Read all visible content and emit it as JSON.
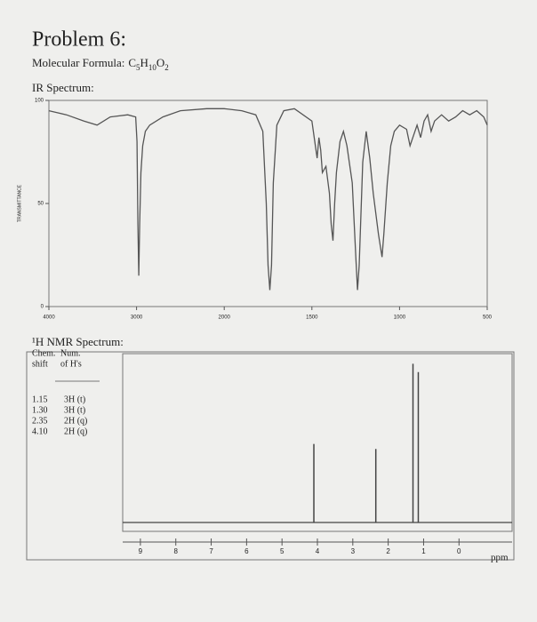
{
  "header": {
    "title": "Problem 6:",
    "formula_label": "Molecular Formula:",
    "formula_parts": [
      "C",
      "5",
      "H",
      "10",
      "O",
      "2"
    ]
  },
  "chart_data": [
    {
      "type": "line",
      "title": "IR Spectrum:",
      "y_label": "TRANSMITTANCE",
      "color": "#555555",
      "x": [
        4000,
        3800,
        3600,
        3450,
        3300,
        3100,
        3010,
        2995,
        2985,
        2975,
        2965,
        2950,
        2930,
        2900,
        2850,
        2700,
        2500,
        2200,
        2000,
        1900,
        1820,
        1780,
        1760,
        1750,
        1740,
        1730,
        1720,
        1700,
        1660,
        1600,
        1500,
        1480,
        1470,
        1460,
        1450,
        1440,
        1420,
        1400,
        1390,
        1380,
        1370,
        1360,
        1340,
        1320,
        1300,
        1270,
        1250,
        1240,
        1230,
        1210,
        1190,
        1170,
        1150,
        1120,
        1100,
        1090,
        1070,
        1050,
        1030,
        1000,
        960,
        940,
        900,
        880,
        860,
        840,
        820,
        800,
        760,
        720,
        680,
        640,
        600,
        560,
        520,
        500
      ],
      "values": [
        95,
        93,
        90,
        88,
        92,
        93,
        92,
        80,
        40,
        15,
        40,
        65,
        78,
        85,
        88,
        92,
        95,
        96,
        96,
        95,
        93,
        85,
        50,
        20,
        8,
        20,
        60,
        88,
        95,
        96,
        90,
        78,
        72,
        82,
        76,
        65,
        68,
        55,
        40,
        32,
        50,
        65,
        80,
        85,
        78,
        60,
        25,
        8,
        20,
        70,
        85,
        72,
        55,
        35,
        24,
        35,
        60,
        78,
        85,
        88,
        86,
        78,
        88,
        82,
        90,
        93,
        85,
        90,
        93,
        90,
        92,
        95,
        93,
        95,
        92,
        88
      ],
      "xlim": [
        4000,
        500
      ],
      "xticks": [
        4000,
        3000,
        2000,
        1500,
        1000,
        500
      ],
      "ylim": [
        0,
        100
      ],
      "yticks": [
        0,
        50,
        100
      ]
    },
    {
      "type": "stick",
      "title": "¹H NMR Spectrum:",
      "x_label": "ppm",
      "color": "#444444",
      "x": [
        4.1,
        2.35,
        1.3,
        1.15
      ],
      "values": [
        47,
        44,
        95,
        90
      ],
      "xlim": [
        9.5,
        -1.5
      ],
      "ylim": [
        0,
        100
      ],
      "xticks": [
        9,
        8,
        7,
        6,
        5,
        4,
        3,
        2,
        1,
        0
      ]
    }
  ],
  "nmr_table": {
    "headers": [
      [
        "Chem.",
        "shift"
      ],
      [
        "Num.",
        "of H's"
      ]
    ],
    "rows": [
      [
        "1.15",
        "3H (t)"
      ],
      [
        "1.30",
        "3H (t)"
      ],
      [
        "2.35",
        "2H (q)"
      ],
      [
        "4.10",
        "2H (q)"
      ]
    ]
  }
}
